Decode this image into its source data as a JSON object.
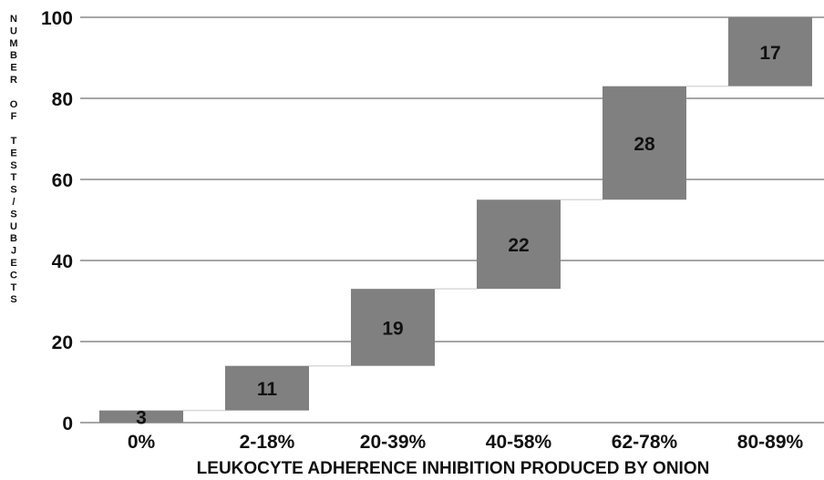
{
  "chart_data": {
    "type": "bar",
    "subtype": "waterfall",
    "categories": [
      "0%",
      "2-18%",
      "20-39%",
      "40-58%",
      "62-78%",
      "80-89%"
    ],
    "values": [
      3,
      11,
      19,
      22,
      28,
      17
    ],
    "xlabel": "LEUKOCYTE ADHERENCE INHIBITION PRODUCED BY ONION",
    "ylabel": "NUMBER OF TESTS/SUBJECTS",
    "ylim": [
      0,
      100
    ],
    "yticks": [
      0,
      20,
      40,
      60,
      80,
      100
    ],
    "grid": true,
    "colors": {
      "bar": "#808080",
      "grid": "#a6a6a6",
      "connector": "#d9d9d9"
    }
  }
}
